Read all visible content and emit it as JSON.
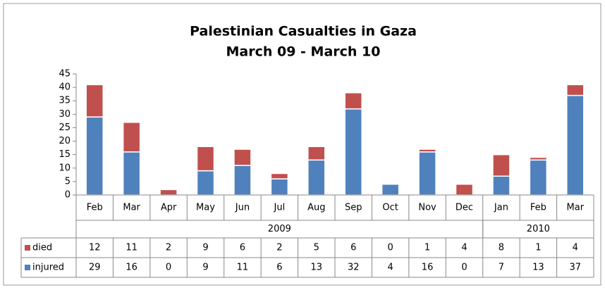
{
  "chart_data": {
    "type": "bar",
    "stacked": true,
    "title": "Palestinian Casualties in Gaza",
    "subtitle": "March 09 - March 10",
    "categories": [
      "Feb",
      "Mar",
      "Apr",
      "May",
      "Jun",
      "Jul",
      "Aug",
      "Sep",
      "Oct",
      "Nov",
      "Dec",
      "Jan",
      "Feb",
      "Mar"
    ],
    "groups": [
      {
        "label": "2009",
        "span": 11
      },
      {
        "label": "2010",
        "span": 3
      }
    ],
    "series": [
      {
        "name": "injured",
        "color": "#4f81bd",
        "values": [
          29,
          16,
          0,
          9,
          11,
          6,
          13,
          32,
          4,
          16,
          0,
          7,
          13,
          37
        ]
      },
      {
        "name": "died",
        "color": "#c0504d",
        "values": [
          12,
          11,
          2,
          9,
          6,
          2,
          5,
          6,
          0,
          1,
          4,
          8,
          1,
          4
        ]
      }
    ],
    "ylim": [
      0,
      45
    ],
    "yticks": [
      0,
      5,
      10,
      15,
      20,
      25,
      30,
      35,
      40,
      45
    ],
    "grid": false
  }
}
